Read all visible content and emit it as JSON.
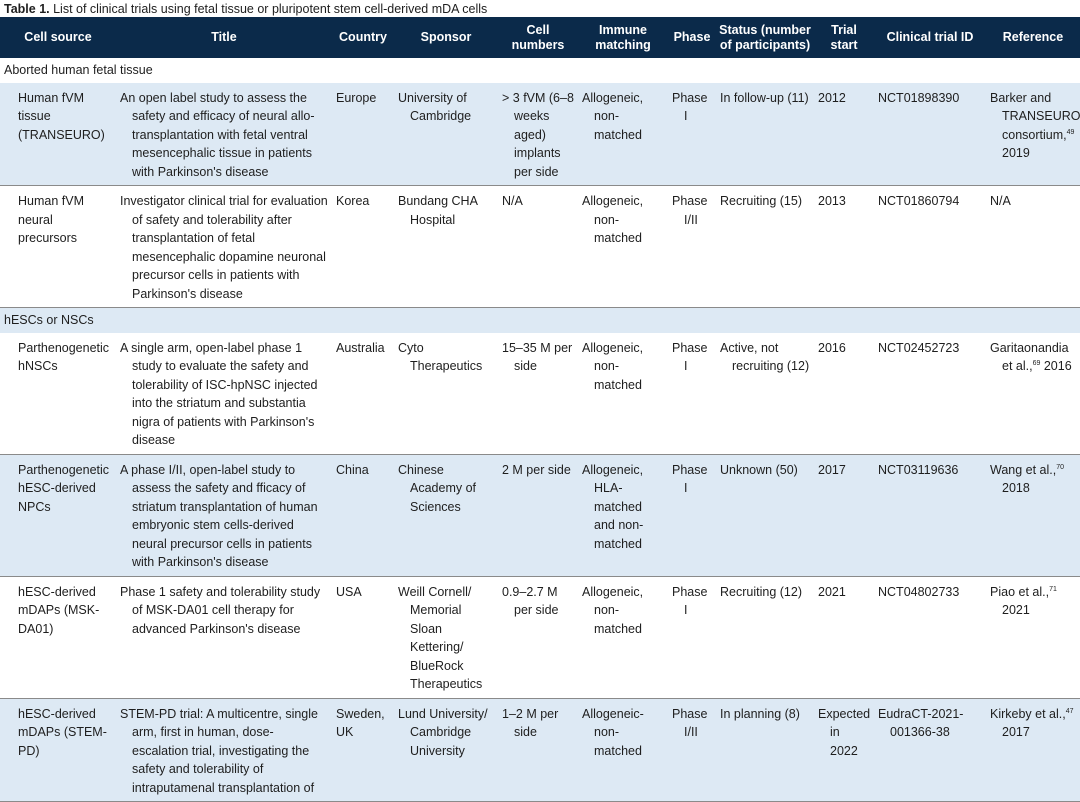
{
  "caption": {
    "label": "Table 1.",
    "text": " List of clinical trials using fetal tissue or pluripotent stem cell-derived mDA cells"
  },
  "headers": [
    "Cell source",
    "Title",
    "Country",
    "Sponsor",
    "Cell numbers",
    "Immune matching",
    "Phase",
    "Status (number of participants)",
    "Trial start",
    "Clinical trial ID",
    "Reference"
  ],
  "sections": [
    {
      "label": "Aborted human fetal tissue",
      "rows": [
        {
          "cell_source": "Human fVM tissue (TRANSEURO)",
          "title": "An open label study to assess the safety and efficacy of neural allo-transplantation with fetal ventral mesencephalic tissue in patients with Parkinson's disease",
          "country": "Europe",
          "sponsor": "University of Cambridge",
          "cell_numbers": "> 3 fVM (6–8 weeks aged) implants per side",
          "immune": "Allogeneic, non-matched",
          "phase": "Phase I",
          "status": "In follow-up (11)",
          "start": "2012",
          "trial_id": "NCT01898390",
          "ref_text": "Barker and TRANSEURO consortium,",
          "ref_sup": "49",
          "ref_tail": " 2019"
        },
        {
          "cell_source": "Human fVM neural precursors",
          "title": "Investigator clinical trial for evaluation of safety and tolerability after transplantation of fetal mesencephalic dopamine neuronal precursor cells in patients with Parkinson's disease",
          "country": "Korea",
          "sponsor": "Bundang CHA Hospital",
          "cell_numbers": "N/A",
          "immune": "Allogeneic, non-matched",
          "phase": "Phase I/II",
          "status": "Recruiting (15)",
          "start": "2013",
          "trial_id": "NCT01860794",
          "ref_text": "N/A",
          "ref_sup": "",
          "ref_tail": ""
        }
      ]
    },
    {
      "label": "hESCs or NSCs",
      "rows": [
        {
          "cell_source": "Parthenogenetic hNSCs",
          "title": "A single arm, open-label phase 1 study to evaluate the safety and tolerability of ISC-hpNSC injected into the striatum and substantia nigra of patients with Parkinson's disease",
          "country": "Australia",
          "sponsor": "Cyto Therapeutics",
          "cell_numbers": "15–35 M per side",
          "immune": "Allogeneic, non-matched",
          "phase": "Phase I",
          "status": "Active, not recruiting (12)",
          "start": "2016",
          "trial_id": "NCT02452723",
          "ref_text": "Garitaonandia et al.,",
          "ref_sup": "69",
          "ref_tail": " 2016"
        },
        {
          "cell_source": "Parthenogenetic hESC-derived NPCs",
          "title": "A phase I/II, open-label study to assess the safety and fficacy of striatum transplantation of human embryonic stem cells-derived neural precursor cells in patients with Parkinson's disease",
          "country": "China",
          "sponsor": "Chinese Academy of Sciences",
          "cell_numbers": "2 M per side",
          "immune": "Allogeneic, HLA-matched and non-matched",
          "phase": "Phase I",
          "status": "Unknown (50)",
          "start": "2017",
          "trial_id": "NCT03119636",
          "ref_text": "Wang et al.,",
          "ref_sup": "70",
          "ref_tail": " 2018"
        },
        {
          "cell_source": "hESC-derived mDAPs (MSK-DA01)",
          "title": "Phase 1 safety and tolerability study of MSK-DA01 cell therapy for advanced Parkinson's disease",
          "country": "USA",
          "sponsor": "Weill Cornell/ Memorial Sloan Kettering/ BlueRock Therapeutics",
          "cell_numbers": "0.9–2.7 M per side",
          "immune": "Allogeneic, non-matched",
          "phase": "Phase I",
          "status": "Recruiting (12)",
          "start": "2021",
          "trial_id": "NCT04802733",
          "ref_text": "Piao et al.,",
          "ref_sup": "71",
          "ref_tail": " 2021"
        },
        {
          "cell_source": "hESC-derived mDAPs (STEM-PD)",
          "title": "STEM-PD trial: A multicentre, single arm, first in human, dose-escalation trial, investigating the safety and tolerability of intraputamenal transplantation of",
          "country": "Sweden, UK",
          "sponsor": "Lund University/ Cambridge University",
          "cell_numbers": "1–2 M per side",
          "immune": "Allogeneic- non-matched",
          "phase": "Phase I/II",
          "status": "In planning (8)",
          "start": "Expected in 2022",
          "trial_id": "EudraCT-2021-001366-38",
          "ref_text": "Kirkeby et al.,",
          "ref_sup": "47",
          "ref_tail": " 2017"
        }
      ]
    }
  ]
}
